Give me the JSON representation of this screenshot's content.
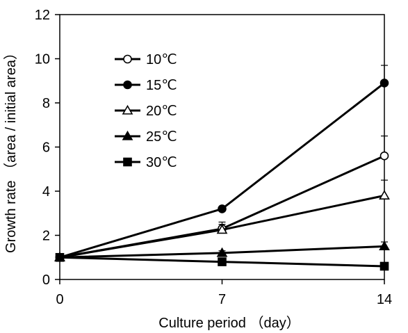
{
  "chart_data": {
    "type": "line",
    "xlabel": "Culture period （day）",
    "ylabel": "Growth rate （area / initial area）",
    "x": [
      0,
      7,
      14
    ],
    "xticks": [
      "0",
      "7",
      "14"
    ],
    "xlim": [
      0,
      14
    ],
    "yticks": [
      "0",
      "2",
      "4",
      "6",
      "8",
      "10",
      "12"
    ],
    "ylim": [
      0,
      12
    ],
    "grid": false,
    "legend_position": "top-left",
    "series": [
      {
        "name": "10℃",
        "marker": "circle-open",
        "values": [
          1.0,
          2.3,
          5.6
        ],
        "errors": [
          0,
          0.2,
          0.9
        ]
      },
      {
        "name": "15℃",
        "marker": "circle-filled",
        "values": [
          1.0,
          3.2,
          8.9
        ],
        "errors": [
          0,
          0.1,
          0.8
        ]
      },
      {
        "name": "20℃",
        "marker": "triangle-open",
        "values": [
          1.0,
          2.25,
          3.8
        ],
        "errors": [
          0,
          0.35,
          0.7
        ]
      },
      {
        "name": "25℃",
        "marker": "triangle-filled",
        "values": [
          1.0,
          1.2,
          1.5
        ],
        "errors": [
          0,
          0.1,
          0.2
        ]
      },
      {
        "name": "30℃",
        "marker": "square-filled",
        "values": [
          1.0,
          0.8,
          0.6
        ],
        "errors": [
          0,
          0.05,
          0.05
        ]
      }
    ],
    "colors": {
      "line": "#000000",
      "background": "#ffffff"
    }
  }
}
